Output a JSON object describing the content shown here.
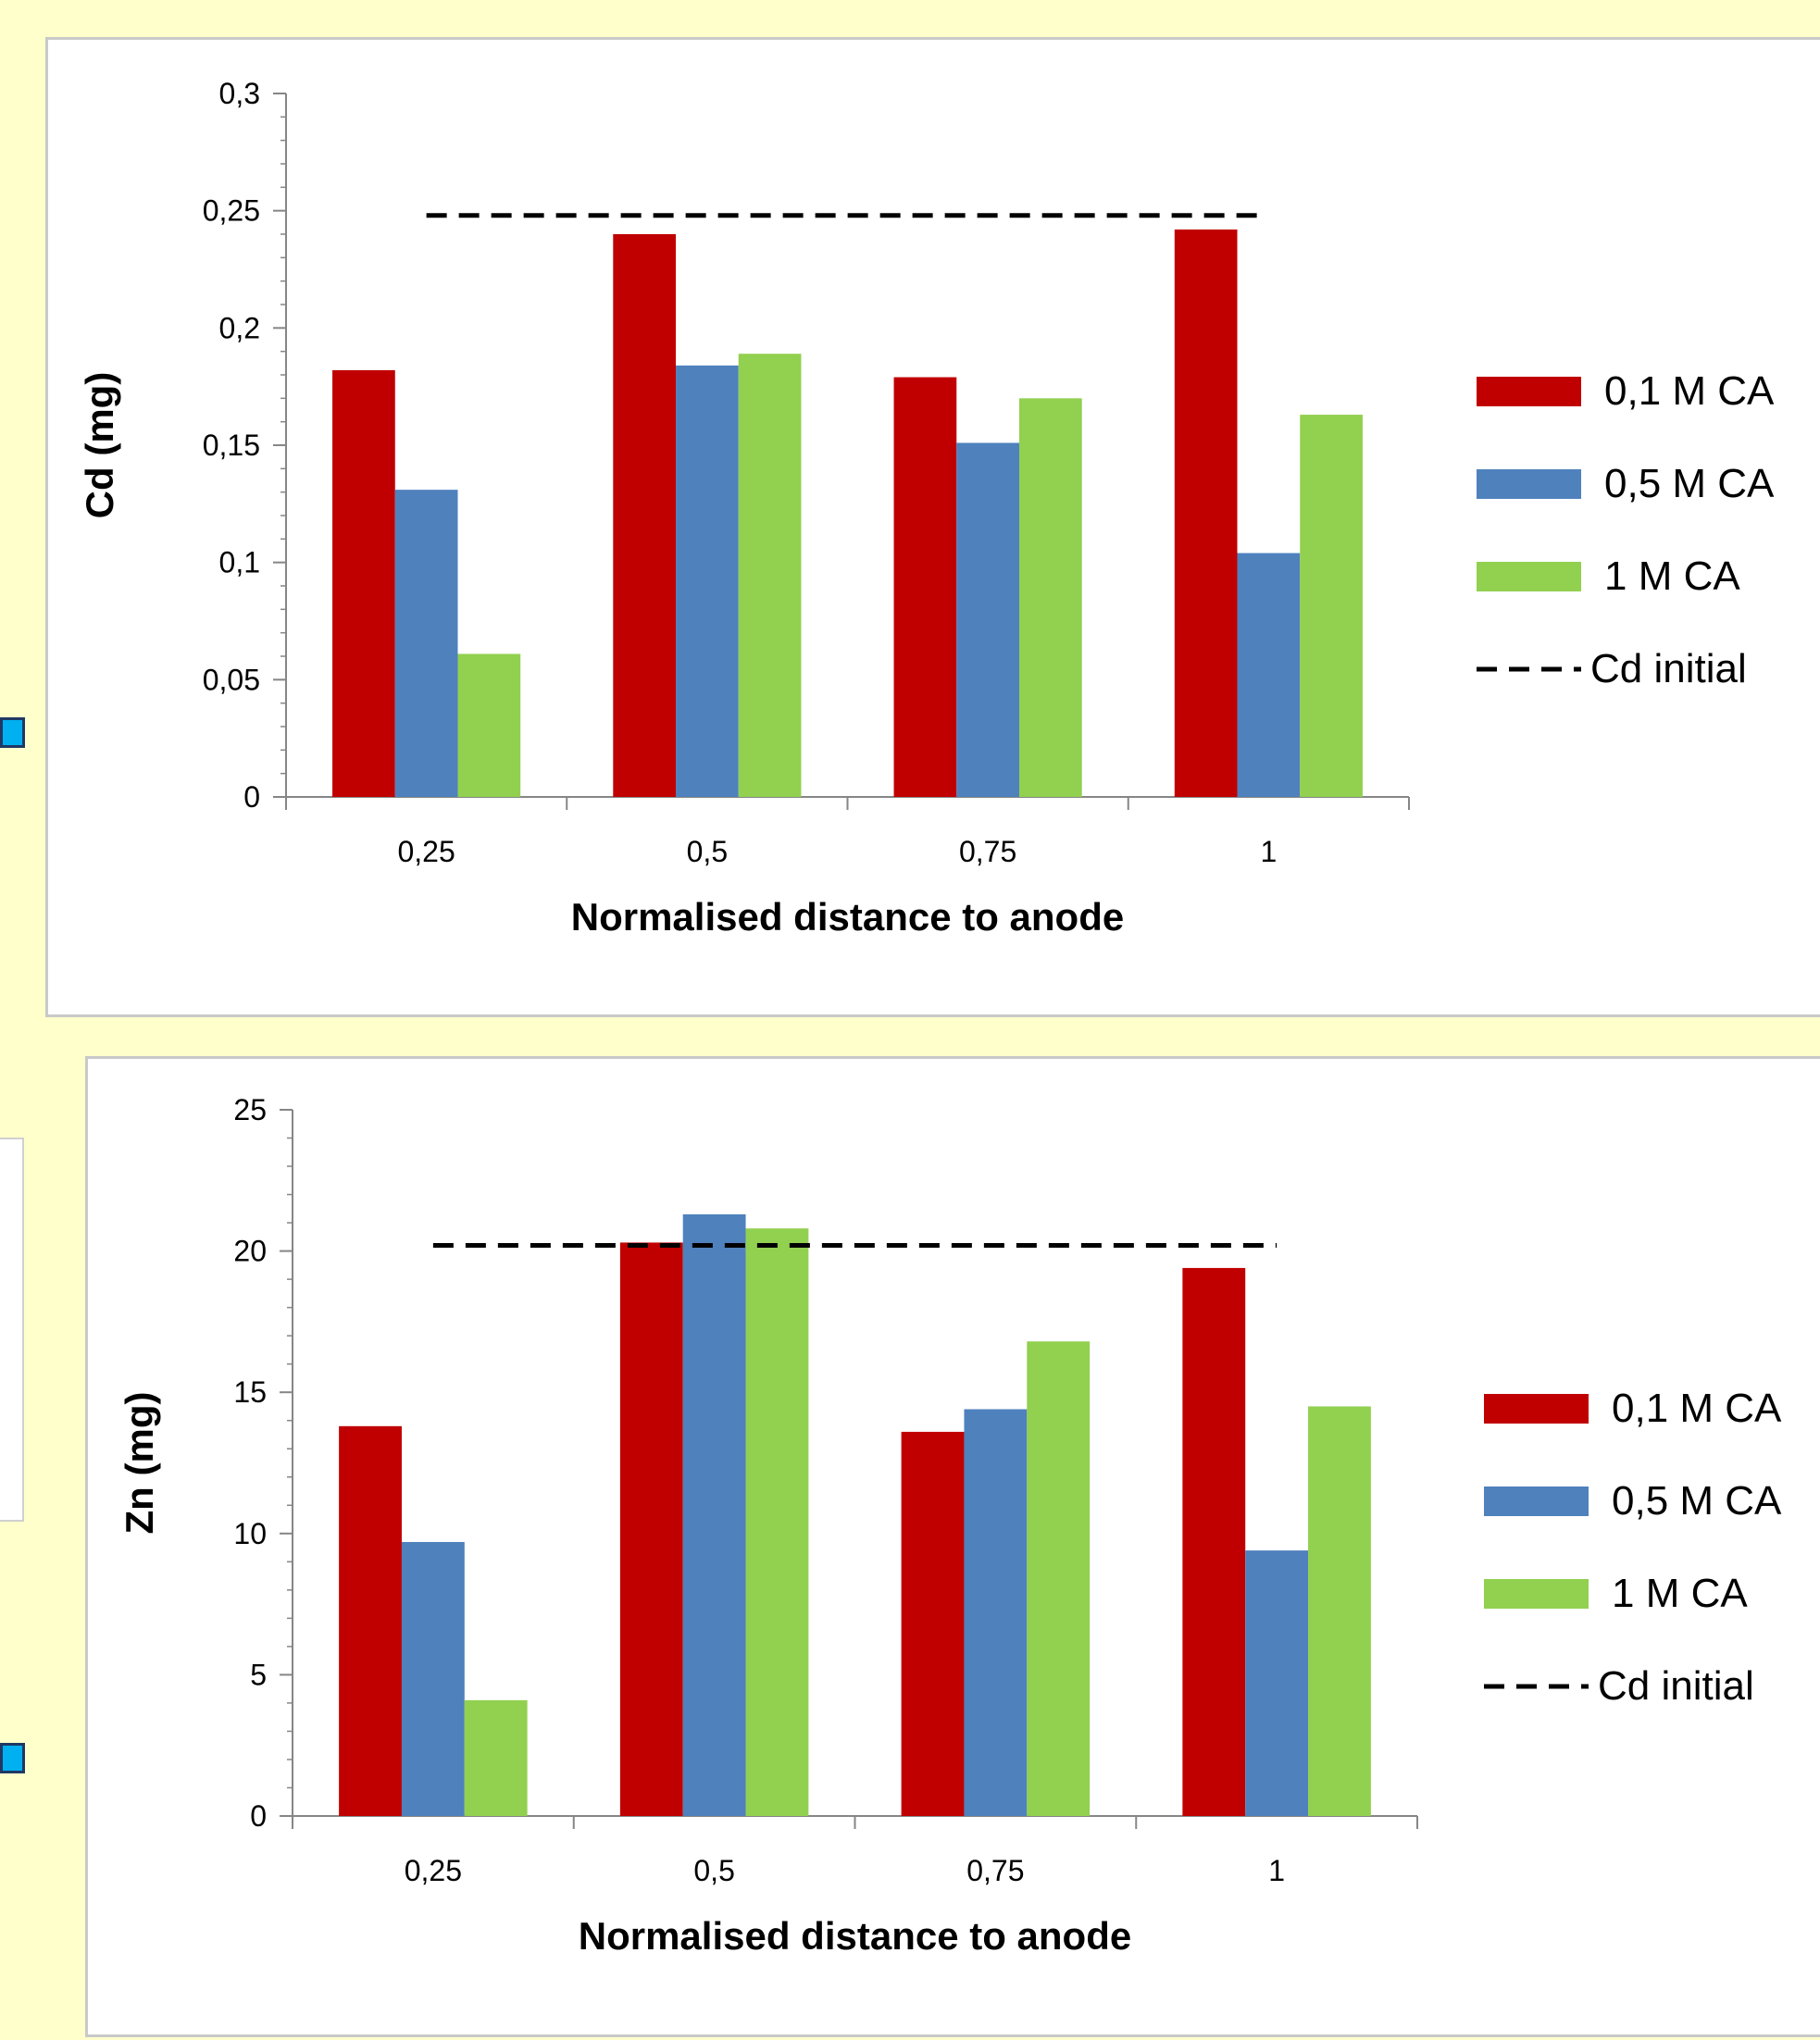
{
  "colors": {
    "series": [
      "#C00000",
      "#4F81BD",
      "#92D050"
    ],
    "reference_line": "#000000",
    "page_background": "#FFFFCC",
    "side_square": "#00B0F0"
  },
  "chart_data": [
    {
      "type": "bar",
      "title": "",
      "xlabel": "Normalised distance to anode",
      "ylabel": "Cd (mg)",
      "categories": [
        "0,25",
        "0,5",
        "0,75",
        "1"
      ],
      "series": [
        {
          "name": "0,1 M CA",
          "values": [
            0.182,
            0.24,
            0.179,
            0.242
          ]
        },
        {
          "name": "0,5 M CA",
          "values": [
            0.131,
            0.184,
            0.151,
            0.104
          ]
        },
        {
          "name": "1 M CA",
          "values": [
            0.061,
            0.189,
            0.17,
            0.163
          ]
        }
      ],
      "reference": {
        "name": "Cd initial",
        "value": 0.248
      },
      "ylim": [
        0,
        0.3
      ],
      "yticks": [
        0,
        0.05,
        0.1,
        0.15,
        0.2,
        0.25,
        0.3
      ],
      "ytick_labels": [
        "0",
        "0,05",
        "0,1",
        "0,15",
        "0,2",
        "0,25",
        "0,3"
      ],
      "grid": false,
      "legend": "right"
    },
    {
      "type": "bar",
      "title": "",
      "xlabel": "Normalised distance to anode",
      "ylabel": "Zn (mg)",
      "categories": [
        "0,25",
        "0,5",
        "0,75",
        "1"
      ],
      "series": [
        {
          "name": "0,1 M CA",
          "values": [
            13.8,
            20.3,
            13.6,
            19.4
          ]
        },
        {
          "name": "0,5 M CA",
          "values": [
            9.7,
            21.3,
            14.4,
            9.4
          ]
        },
        {
          "name": "1 M CA",
          "values": [
            4.1,
            20.8,
            16.8,
            14.5
          ]
        }
      ],
      "reference": {
        "name": "Cd initial",
        "value": 20.2
      },
      "ylim": [
        0,
        25
      ],
      "yticks": [
        0,
        5,
        10,
        15,
        20,
        25
      ],
      "ytick_labels": [
        "0",
        "5",
        "10",
        "15",
        "20",
        "25"
      ],
      "grid": false,
      "legend": "right"
    }
  ]
}
